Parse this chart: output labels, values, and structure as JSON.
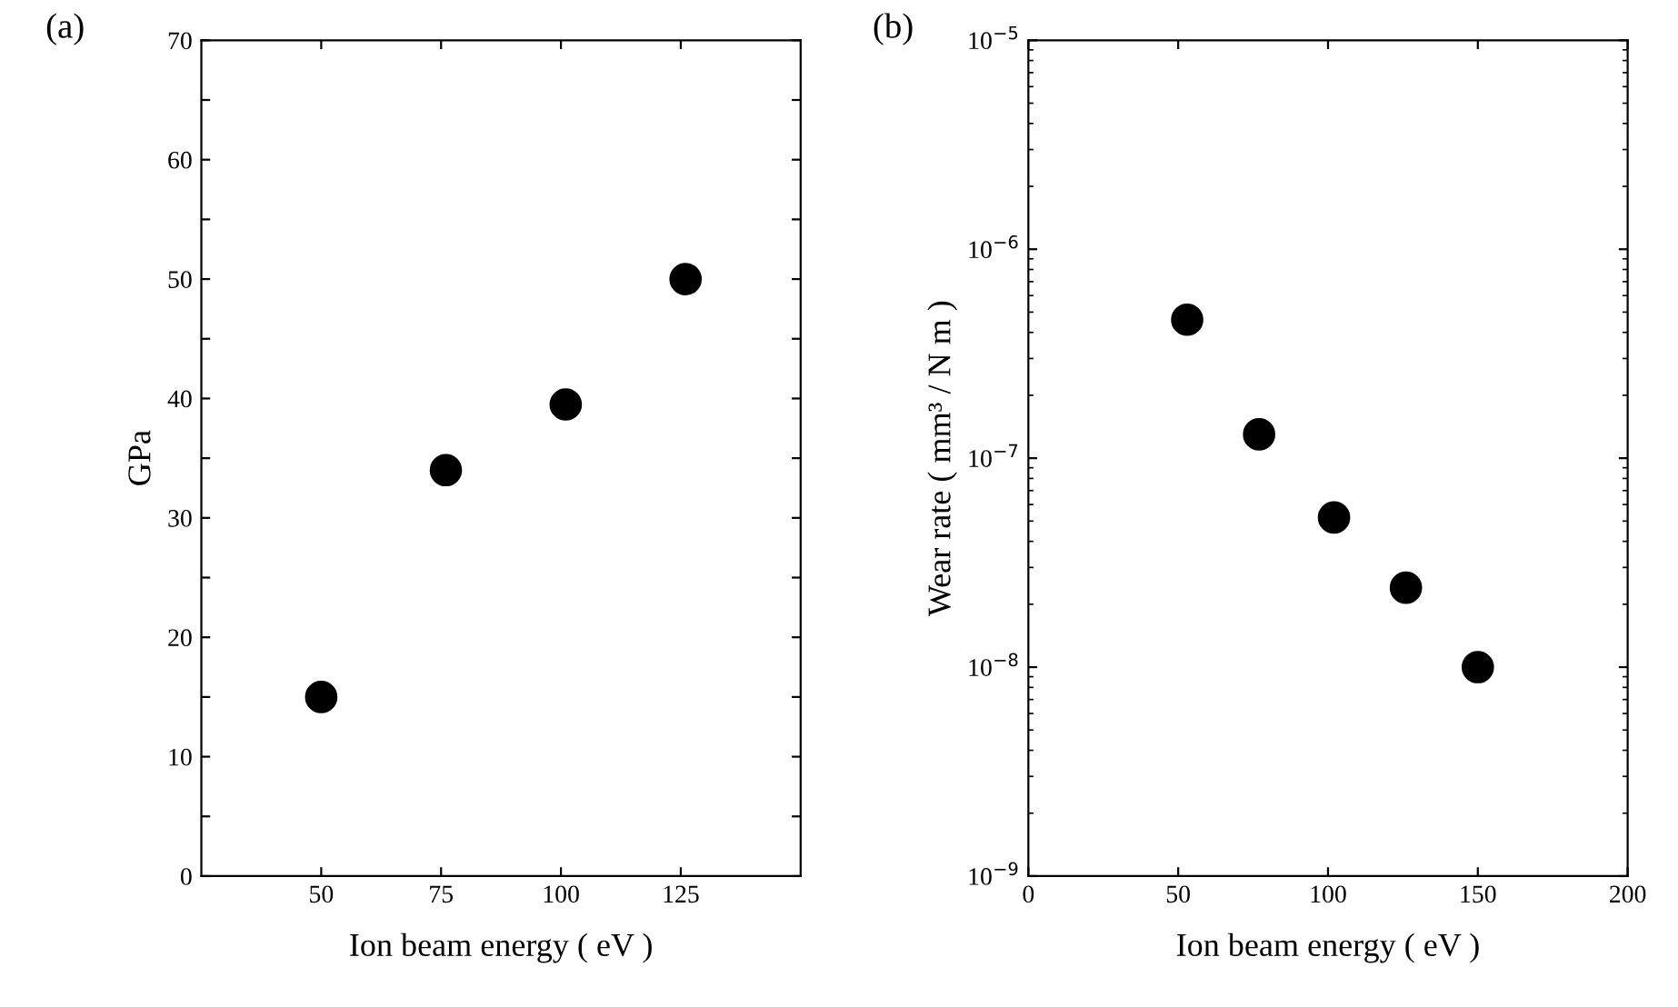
{
  "chart_data": [
    {
      "type": "scatter",
      "title": "(a)",
      "xlabel": "Ion beam energy ( eV )",
      "ylabel": "GPa",
      "x": [
        50,
        76,
        101,
        126
      ],
      "series": [
        {
          "color": "#000000",
          "values": [
            15,
            34,
            39.5,
            50
          ]
        }
      ],
      "xlim": [
        25,
        150
      ],
      "xticks": [
        50,
        75,
        100,
        125
      ],
      "ylim": [
        0,
        70
      ],
      "yticks": [
        0,
        {
          "value": 5,
          "label": null
        },
        10,
        {
          "value": 15,
          "label": null
        },
        20,
        {
          "value": 25,
          "label": null
        },
        30,
        {
          "value": 35,
          "label": null
        },
        40,
        {
          "value": 45,
          "label": null
        },
        50,
        {
          "value": 55,
          "label": null
        },
        60,
        {
          "value": 65,
          "label": null
        },
        70
      ],
      "marker": "circle",
      "grid": false,
      "legend": false
    },
    {
      "type": "scatter",
      "title": "(b)",
      "xlabel": "Ion beam energy ( eV )",
      "ylabel": "Wear rate ( mm³ / N m )",
      "x": [
        53,
        77,
        102,
        126,
        150
      ],
      "series": [
        {
          "color": "#000000",
          "values": [
            4.6e-07,
            1.3e-07,
            5.2e-08,
            2.4e-08,
            1e-08
          ]
        }
      ],
      "xlim": [
        0,
        200
      ],
      "xticks": [
        0,
        50,
        100,
        150,
        200
      ],
      "log": "y",
      "ylim": [
        1e-09,
        1e-05
      ],
      "yticks": [
        {
          "value": 1e-09,
          "label": "10$^{−9}$"
        },
        {
          "value": 1e-08,
          "label": "10$^{−8}$"
        },
        {
          "value": 1e-07,
          "label": "10$^{−7}$"
        },
        {
          "value": 1e-06,
          "label": "10$^{−6}$"
        },
        {
          "value": 1e-05,
          "label": "10$^{−5}$"
        }
      ],
      "marker": "circle",
      "grid": false,
      "legend": false
    }
  ]
}
